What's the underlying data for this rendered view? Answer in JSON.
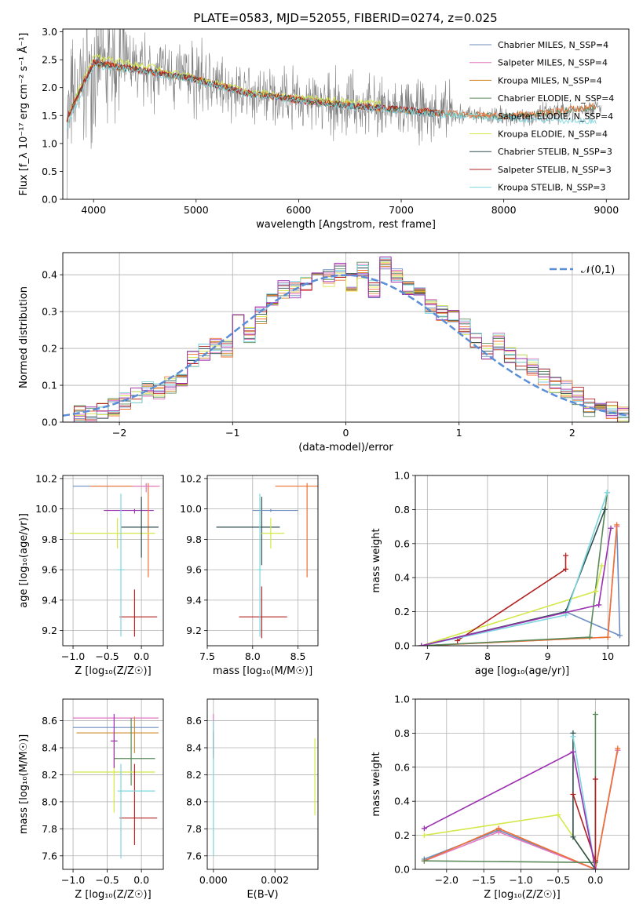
{
  "chart_data": [
    {
      "id": "spectrum",
      "type": "line",
      "title": "PLATE=0583, MJD=52055, FIBERID=0274, z=0.025",
      "xlabel": "wavelength [Angstrom, rest frame]",
      "ylabel": "Flux [f_λ 10⁻¹⁷ erg cm⁻² s⁻¹ Å⁻¹]",
      "xlim": [
        3700,
        9220
      ],
      "ylim": [
        0,
        3.05
      ],
      "xticks": [
        4000,
        5000,
        6000,
        7000,
        8000,
        9000
      ],
      "yticks": [
        0.0,
        0.5,
        1.0,
        1.5,
        2.0,
        2.5,
        3.0
      ],
      "grid": false,
      "legend_position": "top-right",
      "series": [
        {
          "name": "Chabrier MILES, N_SSP=4",
          "color": "#6c8ebf",
          "x": [
            3740,
            4000,
            4500,
            5000,
            5500,
            6000,
            6500,
            7000,
            7400
          ],
          "y": [
            1.45,
            2.45,
            2.3,
            2.15,
            1.9,
            1.78,
            1.68,
            1.6,
            1.52
          ]
        },
        {
          "name": "Salpeter MILES, N_SSP=4",
          "color": "#e377c2",
          "x": [
            3740,
            4000,
            4500,
            5000,
            5500,
            6000,
            6500,
            7000,
            7400
          ],
          "y": [
            1.45,
            2.44,
            2.29,
            2.14,
            1.9,
            1.77,
            1.68,
            1.6,
            1.52
          ]
        },
        {
          "name": "Kroupa MILES, N_SSP=4",
          "color": "#d08a2c",
          "x": [
            3740,
            4000,
            4500,
            5000,
            5500,
            6000,
            6500,
            7000,
            7400
          ],
          "y": [
            1.44,
            2.43,
            2.29,
            2.14,
            1.89,
            1.77,
            1.67,
            1.59,
            1.52
          ]
        },
        {
          "name": "Chabrier ELODIE, N_SSP=4",
          "color": "#5a8a5a",
          "x": [
            3740,
            4000,
            4500,
            5000,
            5500,
            6000,
            6500,
            7000,
            7500,
            8000,
            8500,
            8900
          ],
          "y": [
            1.45,
            2.45,
            2.3,
            2.15,
            1.9,
            1.78,
            1.68,
            1.6,
            1.52,
            1.48,
            1.55,
            1.65
          ]
        },
        {
          "name": "Salpeter ELODIE, N_SSP=4",
          "color": "#f07030",
          "x": [
            3740,
            4000,
            4500,
            5000,
            5500,
            6000,
            6500,
            7000,
            7500,
            8000,
            8500,
            8900
          ],
          "y": [
            1.46,
            2.46,
            2.31,
            2.16,
            1.91,
            1.79,
            1.69,
            1.61,
            1.53,
            1.49,
            1.57,
            1.68
          ]
        },
        {
          "name": "Kroupa ELODIE, N_SSP=4",
          "color": "#d4e84a",
          "x": [
            3740,
            4000,
            4500,
            5000,
            5500,
            6000,
            6500,
            6800
          ],
          "y": [
            1.47,
            2.55,
            2.4,
            2.18,
            1.93,
            1.82,
            1.75,
            1.72
          ]
        },
        {
          "name": "Chabrier STELIB, N_SSP=3",
          "color": "#2f4f4f",
          "x": [
            3740,
            4000,
            4500,
            5000,
            5500,
            6000,
            6500,
            7000,
            7400
          ],
          "y": [
            1.45,
            2.45,
            2.3,
            2.15,
            1.9,
            1.78,
            1.68,
            1.6,
            1.52
          ]
        },
        {
          "name": "Salpeter STELIB, N_SSP=3",
          "color": "#b22222",
          "x": [
            3740,
            4000,
            4500,
            5000,
            5500,
            6000,
            6500,
            7000,
            7400
          ],
          "y": [
            1.45,
            2.45,
            2.3,
            2.15,
            1.9,
            1.78,
            1.68,
            1.62,
            1.55
          ]
        },
        {
          "name": "Kroupa STELIB, N_SSP=3",
          "color": "#7fd6e0",
          "x": [
            3740,
            4000,
            4500,
            5000,
            5500,
            6000,
            6500,
            7000,
            7500,
            8000,
            8500,
            8900
          ],
          "y": [
            1.3,
            2.4,
            2.28,
            2.12,
            1.88,
            1.76,
            1.66,
            1.58,
            1.5,
            1.45,
            1.42,
            1.4
          ]
        }
      ]
    },
    {
      "id": "residuals",
      "type": "line",
      "xlabel": "(data-model)/error",
      "ylabel": "Normed distribution",
      "xlim": [
        -2.5,
        2.5
      ],
      "ylim": [
        0,
        0.46
      ],
      "xticks": [
        -2,
        -1,
        0,
        1,
        2
      ],
      "yticks": [
        0.0,
        0.1,
        0.2,
        0.3,
        0.4
      ],
      "grid": true,
      "legend_position": "top-right",
      "legend": "𝒩(0,1)",
      "gauss_color": "#5b8ed6",
      "hist_edges": [
        -2.5,
        -2.4,
        -2.3,
        -2.2,
        -2.1,
        -2.0,
        -1.9,
        -1.8,
        -1.7,
        -1.6,
        -1.5,
        -1.4,
        -1.3,
        -1.2,
        -1.1,
        -1.0,
        -0.9,
        -0.8,
        -0.7,
        -0.6,
        -0.5,
        -0.4,
        -0.3,
        -0.2,
        -0.1,
        0.0,
        0.1,
        0.2,
        0.3,
        0.4,
        0.5,
        0.6,
        0.7,
        0.8,
        0.9,
        1.0,
        1.1,
        1.2,
        1.3,
        1.4,
        1.5,
        1.6,
        1.7,
        1.8,
        1.9,
        2.0,
        2.1,
        2.2,
        2.3,
        2.4,
        2.5
      ],
      "hist_base": [
        0.02,
        0.02,
        0.02,
        0.03,
        0.04,
        0.06,
        0.07,
        0.09,
        0.08,
        0.1,
        0.11,
        0.17,
        0.19,
        0.21,
        0.2,
        0.29,
        0.24,
        0.29,
        0.33,
        0.36,
        0.36,
        0.38,
        0.4,
        0.39,
        0.41,
        0.38,
        0.41,
        0.36,
        0.44,
        0.4,
        0.36,
        0.34,
        0.31,
        0.3,
        0.28,
        0.26,
        0.22,
        0.19,
        0.22,
        0.18,
        0.16,
        0.15,
        0.12,
        0.1,
        0.09,
        0.07,
        0.04,
        0.04,
        0.03,
        0.02
      ],
      "hist_colors": [
        "#6c8ebf",
        "#e377c2",
        "#d08a2c",
        "#5a8a5a",
        "#f07030",
        "#d4e84a",
        "#2f4f4f",
        "#b22222",
        "#7fd6e0",
        "#9b30b0"
      ]
    },
    {
      "id": "age-vs-Z",
      "type": "scatter",
      "xlabel": "Z [log₁₀(Z/Z☉)]",
      "ylabel": "age  [log₁₀(age/yr)]",
      "xlim": [
        -1.15,
        0.32
      ],
      "ylim": [
        9.1,
        10.22
      ],
      "xticks": [
        -1.0,
        -0.5,
        0.0
      ],
      "yticks": [
        9.2,
        9.4,
        9.6,
        9.8,
        10.0,
        10.2
      ],
      "grid": true,
      "points": [
        {
          "x": -0.05,
          "y": 10.15,
          "xerr": [
            0.95,
            0.25
          ],
          "yerr": [
            0.0,
            0.0
          ],
          "color": "#6c8ebf"
        },
        {
          "x": -0.1,
          "y": 9.99,
          "xerr": [
            0.45,
            0.28
          ],
          "yerr": [
            0.02,
            0.01
          ],
          "color": "#9b30b0"
        },
        {
          "x": 0.1,
          "y": 10.15,
          "xerr": [
            0.85,
            0.15
          ],
          "yerr": [
            0.6,
            0.02
          ],
          "color": "#f07030"
        },
        {
          "x": -0.35,
          "y": 9.84,
          "xerr": [
            0.7,
            0.55
          ],
          "yerr": [
            0.1,
            0.1
          ],
          "color": "#d4e84a"
        },
        {
          "x": 0.0,
          "y": 9.88,
          "xerr": [
            0.3,
            0.25
          ],
          "yerr": [
            0.2,
            0.2
          ],
          "color": "#2f4f4f"
        },
        {
          "x": -0.1,
          "y": 9.29,
          "xerr": [
            0.22,
            0.33
          ],
          "yerr": [
            0.13,
            0.18
          ],
          "color": "#b22222"
        },
        {
          "x": -0.3,
          "y": 9.6,
          "xerr": [
            0.05,
            0.05
          ],
          "yerr": [
            0.44,
            0.5
          ],
          "color": "#7fd6e0"
        },
        {
          "x": 0.07,
          "y": 10.15,
          "xerr": [
            0.2,
            0.2
          ],
          "yerr": [
            0.04,
            0.02
          ],
          "color": "#e377c2"
        }
      ]
    },
    {
      "id": "age-vs-mass",
      "type": "scatter",
      "xlabel": "mass [log₁₀(M/M☉)]",
      "ylabel": "",
      "xlim": [
        7.5,
        8.72
      ],
      "ylim": [
        9.1,
        10.22
      ],
      "xticks": [
        7.5,
        8.0,
        8.5
      ],
      "yticks": [
        9.2,
        9.4,
        9.6,
        9.8,
        10.0,
        10.2
      ],
      "grid": true,
      "points": [
        {
          "x": 8.6,
          "y": 10.15,
          "xerr": [
            0.35,
            0.15
          ],
          "yerr": [
            0.6,
            0.02
          ],
          "color": "#f07030"
        },
        {
          "x": 8.1,
          "y": 9.88,
          "xerr": [
            0.5,
            0.2
          ],
          "yerr": [
            0.25,
            0.2
          ],
          "color": "#2f4f4f"
        },
        {
          "x": 8.1,
          "y": 9.29,
          "xerr": [
            0.25,
            0.28
          ],
          "yerr": [
            0.14,
            0.2
          ],
          "color": "#b22222"
        },
        {
          "x": 8.2,
          "y": 9.99,
          "xerr": [
            0.2,
            0.3
          ],
          "yerr": [
            0.01,
            0.01
          ],
          "color": "#6c8ebf"
        },
        {
          "x": 8.2,
          "y": 9.84,
          "xerr": [
            0.1,
            0.15
          ],
          "yerr": [
            0.1,
            0.1
          ],
          "color": "#d4e84a"
        },
        {
          "x": 8.08,
          "y": 9.6,
          "xerr": [
            0.03,
            0.03
          ],
          "yerr": [
            0.44,
            0.5
          ],
          "color": "#7fd6e0"
        }
      ]
    },
    {
      "id": "massweight-vs-age",
      "type": "line",
      "xlabel": "age  [log₁₀(age/yr)]",
      "ylabel": "mass weight",
      "xlim": [
        6.8,
        10.35
      ],
      "ylim": [
        0,
        1.0
      ],
      "xticks": [
        7,
        8,
        9,
        10
      ],
      "yticks": [
        0.0,
        0.2,
        0.4,
        0.6,
        0.8,
        1.0
      ],
      "grid": true,
      "series": [
        {
          "color": "#6c8ebf",
          "x": [
            6.9,
            9.3,
            10.2,
            10.15
          ],
          "y": [
            0.0,
            0.2,
            0.06,
            0.7
          ]
        },
        {
          "color": "#e377c2",
          "x": [
            6.9,
            10.0,
            10.15
          ],
          "y": [
            0.0,
            0.05,
            0.7
          ]
        },
        {
          "color": "#f07030",
          "x": [
            6.9,
            10.0,
            10.15
          ],
          "y": [
            0.0,
            0.05,
            0.71
          ]
        },
        {
          "color": "#5a8a5a",
          "x": [
            6.9,
            9.7,
            9.99
          ],
          "y": [
            0.0,
            0.05,
            0.9
          ]
        },
        {
          "color": "#d4e84a",
          "x": [
            6.9,
            9.8,
            9.9
          ],
          "y": [
            0.0,
            0.32,
            0.47
          ]
        },
        {
          "color": "#2f4f4f",
          "x": [
            6.9,
            9.3,
            9.95
          ],
          "y": [
            0.0,
            0.2,
            0.8
          ]
        },
        {
          "color": "#b22222",
          "x": [
            7.5,
            9.3,
            9.3
          ],
          "y": [
            0.03,
            0.45,
            0.53
          ]
        },
        {
          "color": "#7fd6e0",
          "x": [
            6.9,
            9.3,
            9.99
          ],
          "y": [
            0.0,
            0.18,
            0.9
          ]
        },
        {
          "color": "#9b30b0",
          "x": [
            6.9,
            9.85,
            10.05
          ],
          "y": [
            0.0,
            0.24,
            0.69
          ]
        }
      ]
    },
    {
      "id": "mass-vs-Z",
      "type": "scatter",
      "xlabel": "Z [log₁₀(Z/Z☉)]",
      "ylabel": "mass [log₁₀(M/M☉)]",
      "xlim": [
        -1.15,
        0.32
      ],
      "ylim": [
        7.5,
        8.76
      ],
      "xticks": [
        -1.0,
        -0.5,
        0.0
      ],
      "yticks": [
        7.6,
        7.8,
        8.0,
        8.2,
        8.4,
        8.6
      ],
      "grid": true,
      "points": [
        {
          "x": -0.05,
          "y": 8.62,
          "xerr": [
            0.95,
            0.3
          ],
          "yerr": [
            0.0,
            0.0
          ],
          "color": "#e377c2"
        },
        {
          "x": -0.05,
          "y": 8.55,
          "xerr": [
            0.95,
            0.3
          ],
          "yerr": [
            0.0,
            0.0
          ],
          "color": "#6c8ebf"
        },
        {
          "x": -0.1,
          "y": 8.51,
          "xerr": [
            0.85,
            0.35
          ],
          "yerr": [
            0.15,
            0.12
          ],
          "color": "#d08a2c"
        },
        {
          "x": -0.15,
          "y": 8.32,
          "xerr": [
            0.25,
            0.35
          ],
          "yerr": [
            0.2,
            0.3
          ],
          "color": "#5a8a5a"
        },
        {
          "x": -0.4,
          "y": 8.22,
          "xerr": [
            0.6,
            0.6
          ],
          "yerr": [
            0.3,
            0.3
          ],
          "color": "#d4e84a"
        },
        {
          "x": -0.1,
          "y": 7.88,
          "xerr": [
            0.22,
            0.33
          ],
          "yerr": [
            0.2,
            0.4
          ],
          "color": "#b22222"
        },
        {
          "x": -0.3,
          "y": 8.08,
          "xerr": [
            0.05,
            0.5
          ],
          "yerr": [
            0.5,
            0.2
          ],
          "color": "#7fd6e0"
        },
        {
          "x": -0.4,
          "y": 8.45,
          "xerr": [
            0.05,
            0.05
          ],
          "yerr": [
            0.2,
            0.2
          ],
          "color": "#9b30b0"
        }
      ]
    },
    {
      "id": "mass-vs-EBV",
      "type": "scatter",
      "xlabel": "E(B-V)",
      "ylabel": "",
      "xlim": [
        -0.0002,
        0.0034
      ],
      "ylim": [
        7.5,
        8.76
      ],
      "xticks": [
        0.0,
        0.002
      ],
      "yticks": [
        7.6,
        7.8,
        8.0,
        8.2,
        8.4,
        8.6
      ],
      "grid": true,
      "points": [
        {
          "x": 0.0,
          "y": 8.55,
          "xerr": [
            0,
            0
          ],
          "yerr": [
            0.2,
            0.1
          ],
          "color": "#e377c2"
        },
        {
          "x": 0.0,
          "y": 8.42,
          "xerr": [
            0,
            0
          ],
          "yerr": [
            0.1,
            0.1
          ],
          "color": "#b22222"
        },
        {
          "x": 0.0,
          "y": 8.1,
          "xerr": [
            0,
            0
          ],
          "yerr": [
            0.5,
            0.5
          ],
          "color": "#7fd6e0"
        },
        {
          "x": 0.0033,
          "y": 8.2,
          "xerr": [
            0,
            0
          ],
          "yerr": [
            0.3,
            0.27
          ],
          "color": "#d4e84a"
        }
      ]
    },
    {
      "id": "massweight-vs-Z",
      "type": "line",
      "xlabel": "Z [log₁₀(Z/Z☉)]",
      "ylabel": "mass weight",
      "xlim": [
        -2.42,
        0.45
      ],
      "ylim": [
        0,
        1.0
      ],
      "xticks": [
        -2.0,
        -1.5,
        -1.0,
        -0.5,
        0.0
      ],
      "yticks": [
        0.0,
        0.2,
        0.4,
        0.6,
        0.8,
        1.0
      ],
      "grid": true,
      "series": [
        {
          "color": "#6c8ebf",
          "x": [
            -2.3,
            -1.3,
            0.0,
            0.3
          ],
          "y": [
            0.06,
            0.23,
            0.0,
            0.7
          ]
        },
        {
          "color": "#e377c2",
          "x": [
            -2.3,
            -1.3,
            0.0,
            0.3
          ],
          "y": [
            0.05,
            0.22,
            0.0,
            0.7
          ]
        },
        {
          "color": "#f07030",
          "x": [
            -2.3,
            -1.3,
            0.0,
            0.3
          ],
          "y": [
            0.05,
            0.24,
            0.0,
            0.71
          ]
        },
        {
          "color": "#5a8a5a",
          "x": [
            -2.3,
            0.0,
            0.0
          ],
          "y": [
            0.05,
            0.04,
            0.91
          ]
        },
        {
          "color": "#d4e84a",
          "x": [
            -2.3,
            -0.5,
            0.0
          ],
          "y": [
            0.2,
            0.32,
            0.0
          ]
        },
        {
          "color": "#2f4f4f",
          "x": [
            -0.3,
            -0.3,
            0.0
          ],
          "y": [
            0.8,
            0.19,
            0.0
          ]
        },
        {
          "color": "#b22222",
          "x": [
            -0.3,
            0.0,
            0.0
          ],
          "y": [
            0.44,
            0.05,
            0.53
          ]
        },
        {
          "color": "#7fd6e0",
          "x": [
            -0.3,
            0.0
          ],
          "y": [
            0.78,
            0.0
          ]
        },
        {
          "color": "#9b30b0",
          "x": [
            -2.3,
            -0.3,
            0.0
          ],
          "y": [
            0.24,
            0.69,
            0.0
          ]
        }
      ]
    }
  ]
}
